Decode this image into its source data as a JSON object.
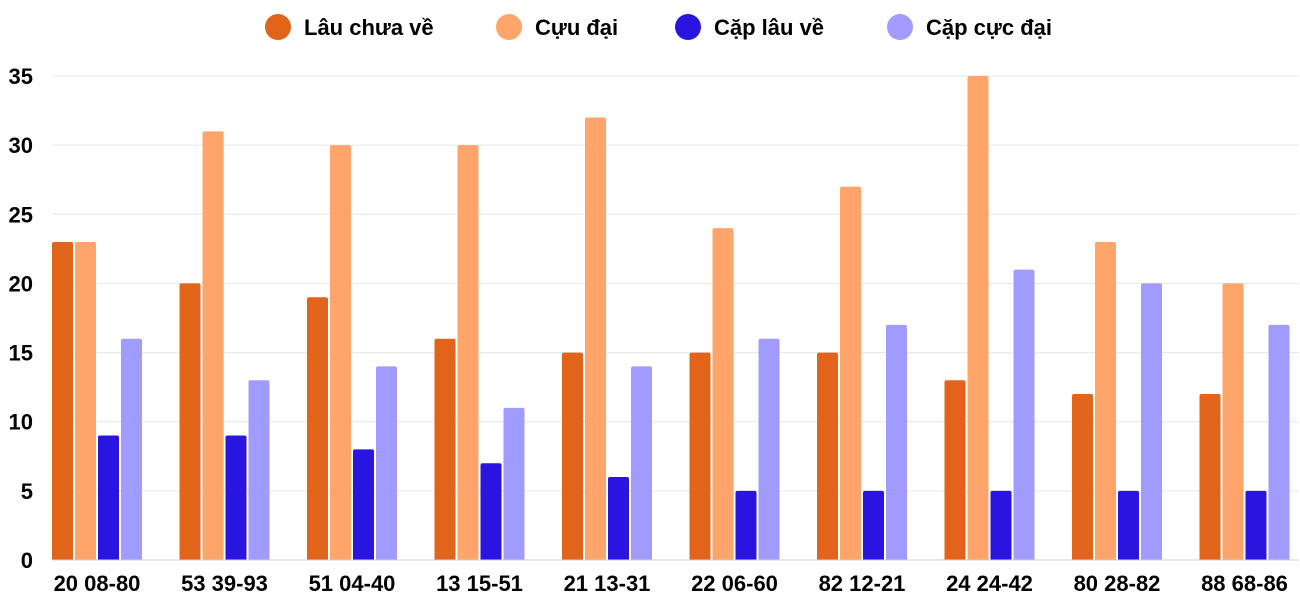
{
  "chart_data": {
    "type": "bar",
    "title": "",
    "xlabel": "",
    "ylabel": "",
    "ylim": [
      0,
      35
    ],
    "y_ticks": [
      0,
      5,
      10,
      15,
      20,
      25,
      30,
      35
    ],
    "grid": true,
    "legend_position": "top-center",
    "categories": [
      "20 08-80",
      "53 39-93",
      "51 04-40",
      "13 15-51",
      "21 13-31",
      "22 06-60",
      "82 12-21",
      "24 24-42",
      "80 28-82",
      "88 68-86"
    ],
    "series": [
      {
        "name": "Lâu chưa về",
        "color": "#E2631A",
        "values": [
          23,
          20,
          19,
          16,
          15,
          15,
          15,
          13,
          12,
          12
        ]
      },
      {
        "name": "Cựu đại",
        "color": "#FFA46A",
        "values": [
          23,
          31,
          30,
          30,
          32,
          24,
          27,
          35,
          23,
          20
        ]
      },
      {
        "name": "Cặp lâu về",
        "color": "#2A14E0",
        "values": [
          9,
          9,
          8,
          7,
          6,
          5,
          5,
          5,
          5,
          5
        ]
      },
      {
        "name": "Cặp cực đại",
        "color": "#A19BFF",
        "values": [
          16,
          13,
          14,
          11,
          14,
          16,
          17,
          21,
          20,
          17
        ]
      }
    ]
  }
}
